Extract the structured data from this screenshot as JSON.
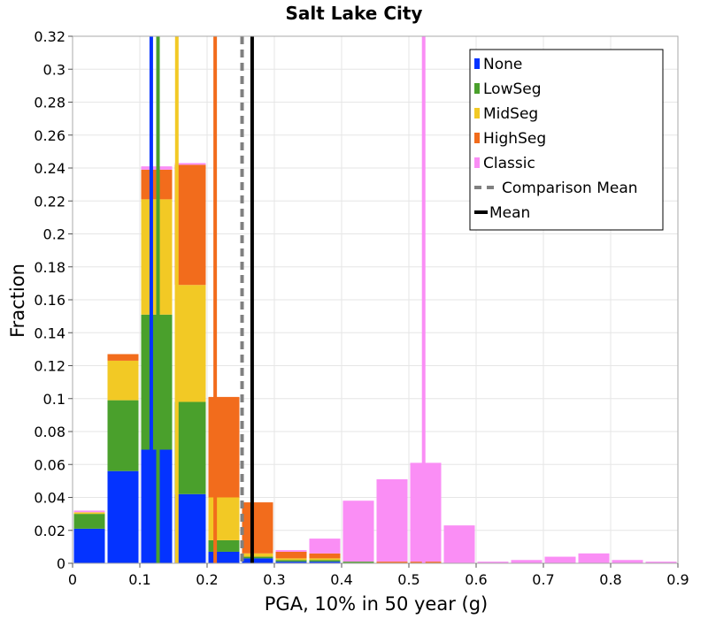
{
  "chart_data": {
    "type": "bar",
    "stacked": true,
    "title": "Salt Lake City",
    "xlabel": "PGA, 10% in 50 year (g)",
    "ylabel": "Fraction",
    "xlim": [
      0,
      0.9
    ],
    "ylim": [
      0,
      0.32
    ],
    "xticks": [
      "0",
      "0.1",
      "0.2",
      "0.3",
      "0.4",
      "0.5",
      "0.6",
      "0.7",
      "0.8",
      "0.9"
    ],
    "yticks": [
      "0",
      "0.02",
      "0.04",
      "0.06",
      "0.08",
      "0.1",
      "0.12",
      "0.14",
      "0.16",
      "0.18",
      "0.2",
      "0.22",
      "0.24",
      "0.26",
      "0.28",
      "0.3",
      "0.32"
    ],
    "grid": true,
    "legend_position": "top-right",
    "bin_width": 0.05,
    "bins": [
      0.0,
      0.05,
      0.1,
      0.15,
      0.2,
      0.25,
      0.3,
      0.35,
      0.4,
      0.45,
      0.5,
      0.55,
      0.6,
      0.65,
      0.7,
      0.75,
      0.8,
      0.85
    ],
    "series": [
      {
        "name": "None",
        "color": "#0433ff",
        "values": [
          0.021,
          0.056,
          0.069,
          0.042,
          0.007,
          0.003,
          0.001,
          0.001,
          0,
          0,
          0,
          0,
          0,
          0,
          0,
          0,
          0,
          0
        ]
      },
      {
        "name": "LowSeg",
        "color": "#4aa02c",
        "values": [
          0.009,
          0.043,
          0.082,
          0.056,
          0.007,
          0.001,
          0.001,
          0.001,
          0.001,
          0,
          0,
          0,
          0,
          0,
          0,
          0,
          0,
          0
        ]
      },
      {
        "name": "MidSeg",
        "color": "#f2c925",
        "values": [
          0.001,
          0.024,
          0.07,
          0.071,
          0.026,
          0.002,
          0.001,
          0.001,
          0,
          0,
          0,
          0,
          0,
          0,
          0,
          0,
          0,
          0
        ]
      },
      {
        "name": "HighSeg",
        "color": "#f26c1c",
        "values": [
          0,
          0.004,
          0.018,
          0.073,
          0.061,
          0.031,
          0.004,
          0.003,
          0,
          0.001,
          0.001,
          0,
          0,
          0,
          0,
          0,
          0,
          0
        ]
      },
      {
        "name": "Classic",
        "color": "#fa8ef5",
        "values": [
          0.001,
          0,
          0.002,
          0.001,
          0,
          0,
          0.001,
          0.009,
          0.037,
          0.05,
          0.06,
          0.023,
          0.001,
          0.002,
          0.004,
          0.006,
          0.002,
          0.001
        ]
      }
    ],
    "mean_lines": [
      {
        "series": "None",
        "x": 0.117,
        "color": "#0433ff",
        "width": 4
      },
      {
        "series": "LowSeg",
        "x": 0.127,
        "color": "#4aa02c",
        "width": 4
      },
      {
        "series": "MidSeg",
        "x": 0.155,
        "color": "#f2c925",
        "width": 4
      },
      {
        "series": "HighSeg",
        "x": 0.212,
        "color": "#f26c1c",
        "width": 4
      },
      {
        "series": "Classic",
        "x": 0.522,
        "color": "#fa8ef5",
        "width": 4
      }
    ],
    "comparison_mean": {
      "name": "Comparison Mean",
      "x": 0.252,
      "color": "#808080",
      "style": "dashed"
    },
    "mean": {
      "name": "Mean",
      "x": 0.267,
      "color": "#000000",
      "style": "solid"
    }
  }
}
